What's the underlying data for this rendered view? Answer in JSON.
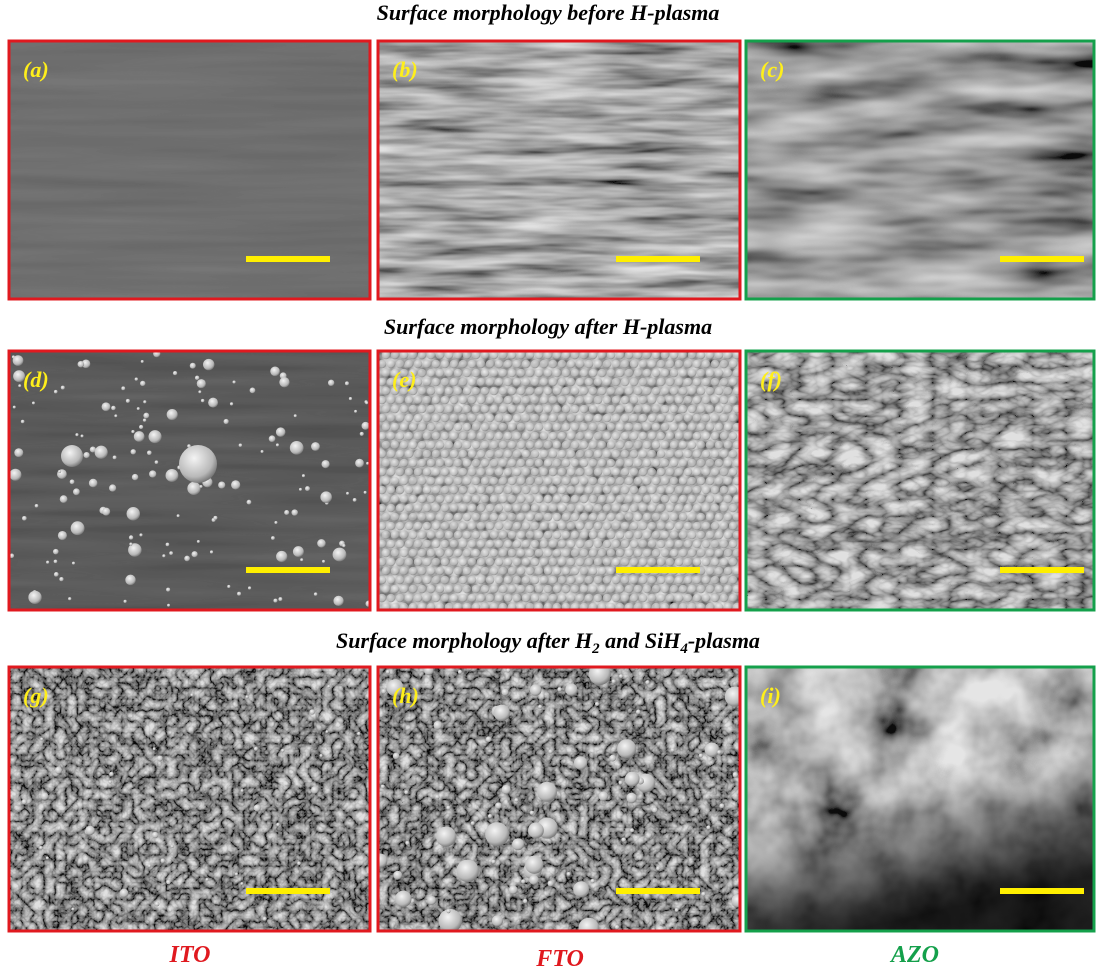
{
  "rows": [
    {
      "title": [
        "Surface morphology before H-plasma"
      ],
      "panels": [
        "(a)",
        "(b)",
        "(c)"
      ]
    },
    {
      "title": [
        "Surface morphology after H-plasma"
      ],
      "panels": [
        "(d)",
        "(e)",
        "(f)"
      ]
    },
    {
      "title": [
        "Surface morphology after H",
        "2",
        " and SiH",
        "4",
        "-plasma"
      ],
      "panels": [
        "(g)",
        "(h)",
        "(i)"
      ]
    }
  ],
  "materials": [
    "ITO",
    "FTO",
    "AZO"
  ]
}
